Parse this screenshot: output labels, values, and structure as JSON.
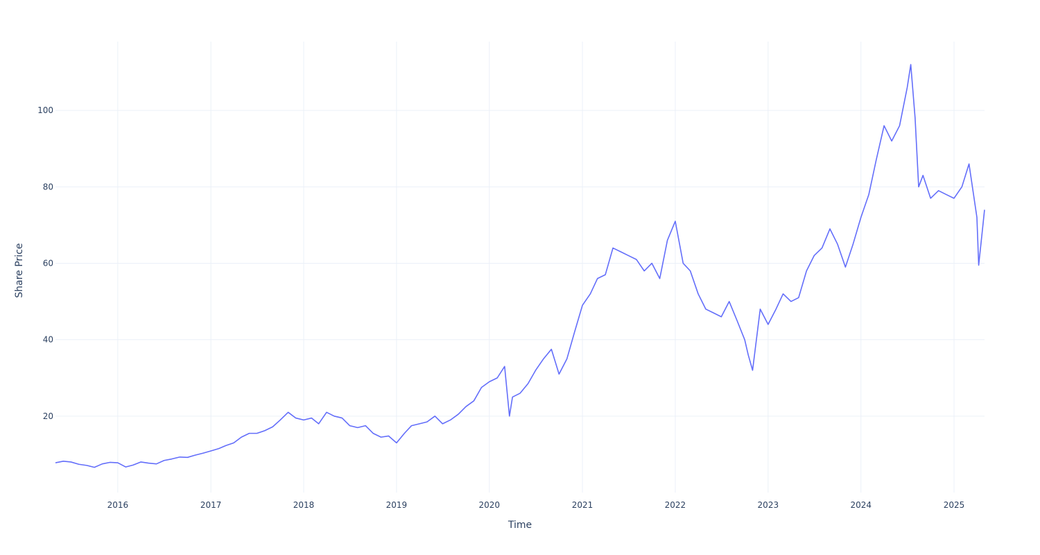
{
  "chart_data": {
    "type": "line",
    "title": "",
    "xlabel": "Time",
    "ylabel": "Share Price",
    "x_tick_labels": [
      "2016",
      "2017",
      "2018",
      "2019",
      "2020",
      "2021",
      "2022",
      "2023",
      "2024",
      "2025"
    ],
    "y_tick_labels": [
      "20",
      "40",
      "60",
      "80",
      "100"
    ],
    "x_range": [
      "2015-05-01",
      "2025-05-01"
    ],
    "y_range": [
      0,
      118
    ],
    "grid": true,
    "legend": "none",
    "colors": {
      "line": "#636efa",
      "grid": "#ebf0f8",
      "text": "#2a3f5f",
      "background": "#ffffff"
    },
    "series": [
      {
        "x": [
          "2015-05-01",
          "2015-06-01",
          "2015-07-01",
          "2015-08-01",
          "2015-09-01",
          "2015-10-01",
          "2015-11-01",
          "2015-12-01",
          "2016-01-01",
          "2016-02-01",
          "2016-03-01",
          "2016-04-01",
          "2016-05-01",
          "2016-06-01",
          "2016-07-01",
          "2016-08-01",
          "2016-09-01",
          "2016-10-01",
          "2016-11-01",
          "2016-12-01",
          "2017-01-01",
          "2017-02-01",
          "2017-03-01",
          "2017-04-01",
          "2017-05-01",
          "2017-06-01",
          "2017-07-01",
          "2017-08-01",
          "2017-09-01",
          "2017-10-01",
          "2017-11-01",
          "2017-12-01",
          "2018-01-01",
          "2018-02-01",
          "2018-03-01",
          "2018-04-01",
          "2018-05-01",
          "2018-06-01",
          "2018-07-01",
          "2018-08-01",
          "2018-09-01",
          "2018-10-01",
          "2018-11-01",
          "2018-12-01",
          "2019-01-01",
          "2019-02-01",
          "2019-03-01",
          "2019-04-01",
          "2019-05-01",
          "2019-06-01",
          "2019-07-01",
          "2019-08-01",
          "2019-09-01",
          "2019-10-01",
          "2019-11-01",
          "2019-12-01",
          "2020-01-01",
          "2020-02-01",
          "2020-03-01",
          "2020-03-20",
          "2020-04-01",
          "2020-05-01",
          "2020-06-01",
          "2020-07-01",
          "2020-08-01",
          "2020-09-01",
          "2020-10-01",
          "2020-11-01",
          "2020-12-01",
          "2021-01-01",
          "2021-02-01",
          "2021-03-01",
          "2021-04-01",
          "2021-05-01",
          "2021-06-01",
          "2021-07-01",
          "2021-08-01",
          "2021-09-01",
          "2021-10-01",
          "2021-11-01",
          "2021-12-01",
          "2022-01-01",
          "2022-02-01",
          "2022-03-01",
          "2022-04-01",
          "2022-05-01",
          "2022-06-01",
          "2022-07-01",
          "2022-08-01",
          "2022-09-01",
          "2022-10-01",
          "2022-10-15",
          "2022-11-01",
          "2022-12-01",
          "2023-01-01",
          "2023-02-01",
          "2023-03-01",
          "2023-04-01",
          "2023-05-01",
          "2023-06-01",
          "2023-07-01",
          "2023-08-01",
          "2023-09-01",
          "2023-10-01",
          "2023-11-01",
          "2023-12-01",
          "2024-01-01",
          "2024-02-01",
          "2024-03-01",
          "2024-04-01",
          "2024-05-01",
          "2024-06-01",
          "2024-07-01",
          "2024-07-15",
          "2024-08-01",
          "2024-08-15",
          "2024-09-01",
          "2024-10-01",
          "2024-11-01",
          "2024-12-01",
          "2025-01-01",
          "2025-02-01",
          "2025-03-01",
          "2025-04-01",
          "2025-04-08",
          "2025-04-20",
          "2025-05-01"
        ],
        "y": [
          7.8,
          8.2,
          8.0,
          7.4,
          7.1,
          6.6,
          7.5,
          7.9,
          7.8,
          6.7,
          7.2,
          8.0,
          7.7,
          7.5,
          8.4,
          8.8,
          9.3,
          9.2,
          9.8,
          10.3,
          10.9,
          11.5,
          12.3,
          13.0,
          14.5,
          15.5,
          15.5,
          16.2,
          17.2,
          19.0,
          21.0,
          19.5,
          19.0,
          19.5,
          18.0,
          21.0,
          20.0,
          19.5,
          17.5,
          17.0,
          17.5,
          15.5,
          14.5,
          14.8,
          13.0,
          15.5,
          17.5,
          18.0,
          18.5,
          20.0,
          18.0,
          19.0,
          20.5,
          22.5,
          24.0,
          27.5,
          29.0,
          30.0,
          33.0,
          20.0,
          25.0,
          26.0,
          28.5,
          32.0,
          35.0,
          37.5,
          31.0,
          35.0,
          42.0,
          49.0,
          52.0,
          56.0,
          57.0,
          64.0,
          63.0,
          62.0,
          61.0,
          58.0,
          60.0,
          56.0,
          66.0,
          71.0,
          60.0,
          58.0,
          52.0,
          48.0,
          47.0,
          46.0,
          50.0,
          45.0,
          40.0,
          36.0,
          32.0,
          48.0,
          44.0,
          48.0,
          52.0,
          50.0,
          51.0,
          58.0,
          62.0,
          64.0,
          69.0,
          65.0,
          59.0,
          65.0,
          72.0,
          78.0,
          87.0,
          96.0,
          92.0,
          96.0,
          106.0,
          112.0,
          98.0,
          80.0,
          83.0,
          77.0,
          79.0,
          78.0,
          77.0,
          80.0,
          86.0,
          72.0,
          59.5,
          67.0,
          74.0
        ]
      }
    ]
  }
}
